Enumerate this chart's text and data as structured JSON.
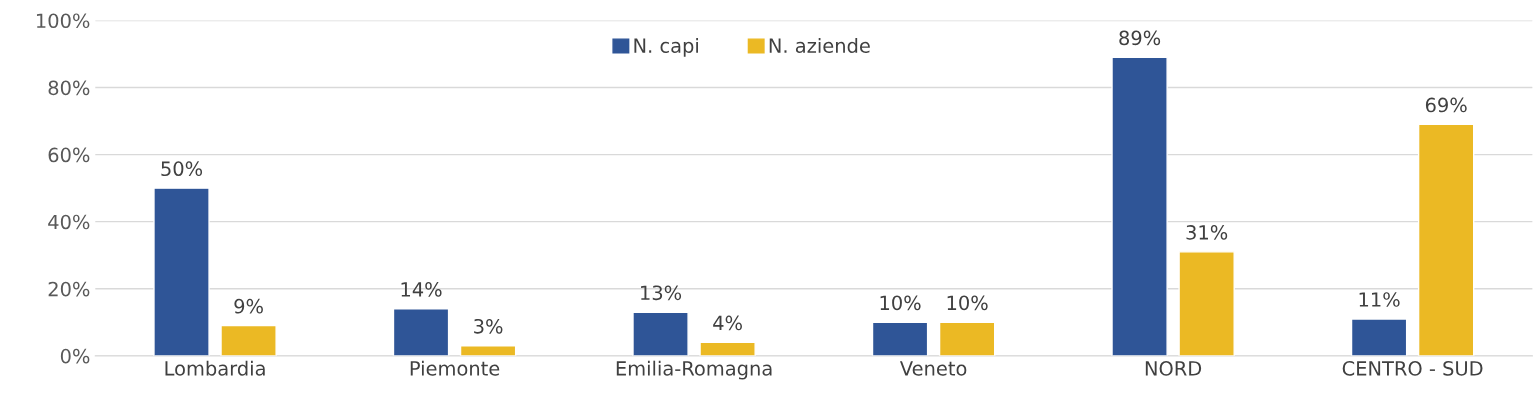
{
  "chart_data": {
    "type": "bar",
    "categories": [
      "Lombardia",
      "Piemonte",
      "Emilia-Romagna",
      "Veneto",
      "NORD",
      "CENTRO - SUD"
    ],
    "series": [
      {
        "name": "N. capi",
        "color": "#2f5597",
        "values": [
          50,
          14,
          13,
          10,
          89,
          11
        ],
        "value_labels": [
          "50%",
          "14%",
          "13%",
          "10%",
          "89%",
          "11%"
        ]
      },
      {
        "name": "N. aziende",
        "color": "#ebb924",
        "values": [
          9,
          3,
          4,
          10,
          31,
          69
        ],
        "value_labels": [
          "9%",
          "3%",
          "4%",
          "10%",
          "31%",
          "69%"
        ]
      }
    ],
    "ylim": [
      0,
      100
    ],
    "yticks": [
      {
        "value": 0,
        "label": "0%"
      },
      {
        "value": 20,
        "label": "20%"
      },
      {
        "value": 40,
        "label": "40%"
      },
      {
        "value": 60,
        "label": "60%"
      },
      {
        "value": 80,
        "label": "80%"
      },
      {
        "value": 100,
        "label": "100%"
      }
    ],
    "grid": "y",
    "legend": "top"
  }
}
